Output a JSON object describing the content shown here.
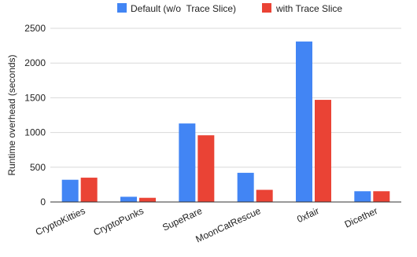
{
  "chart_data": {
    "type": "bar",
    "ylabel": "Runtime overhead (seconds)",
    "xlabel": "",
    "ylim": [
      0,
      2500
    ],
    "yticks": [
      0,
      500,
      1000,
      1500,
      2000,
      2500
    ],
    "grid": "horizontal",
    "legend": "top",
    "categories": [
      "CryptoKitties",
      "CryptoPunks",
      "SupeRare",
      "MoonCatRescue",
      "0xfair",
      "Dicether"
    ],
    "series": [
      {
        "name": "Default (w/o  Trace Slice)",
        "color": "#4285F4",
        "values": [
          320,
          75,
          1130,
          420,
          2310,
          155
        ]
      },
      {
        "name": "with Trace Slice",
        "color": "#EA4335",
        "values": [
          350,
          60,
          960,
          175,
          1470,
          155
        ]
      }
    ]
  }
}
